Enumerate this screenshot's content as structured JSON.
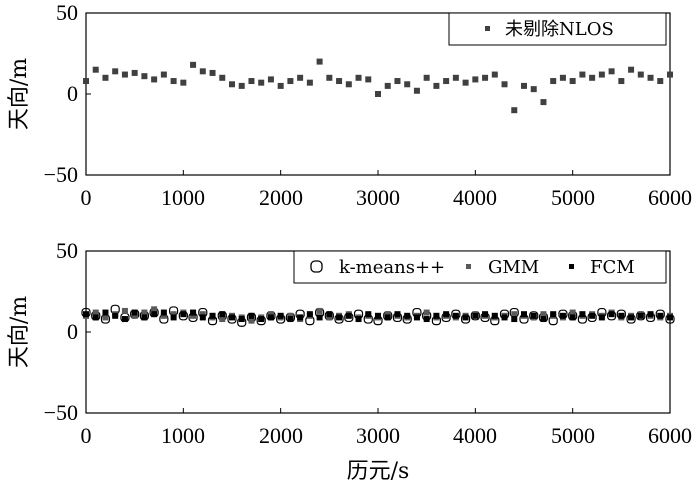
{
  "chart_data": [
    {
      "type": "scatter",
      "title": "",
      "ylabel": "天向/m",
      "xlabel": "",
      "xlim": [
        0,
        6000
      ],
      "ylim": [
        -50,
        50
      ],
      "xticks": [
        "0",
        "1000",
        "2000",
        "3000",
        "4000",
        "5000",
        "6000"
      ],
      "yticks": [
        "50",
        "0",
        "−50"
      ],
      "legend_position": "top-right",
      "series": [
        {
          "name": "未剔除NLOS",
          "color": "#404040",
          "marker": "square",
          "x": [
            0,
            100,
            200,
            300,
            400,
            500,
            600,
            700,
            800,
            900,
            1000,
            1100,
            1200,
            1300,
            1400,
            1500,
            1600,
            1700,
            1800,
            1900,
            2000,
            2100,
            2200,
            2300,
            2400,
            2500,
            2600,
            2700,
            2800,
            2900,
            3000,
            3100,
            3200,
            3300,
            3400,
            3500,
            3600,
            3700,
            3800,
            3900,
            4000,
            4100,
            4200,
            4300,
            4400,
            4500,
            4600,
            4700,
            4800,
            4900,
            5000,
            5100,
            5200,
            5300,
            5400,
            5500,
            5600,
            5700,
            5800,
            5900,
            6000
          ],
          "y": [
            8,
            15,
            10,
            14,
            12,
            13,
            11,
            9,
            12,
            8,
            7,
            18,
            14,
            13,
            10,
            6,
            5,
            8,
            7,
            9,
            5,
            8,
            10,
            7,
            20,
            10,
            8,
            6,
            10,
            9,
            0,
            5,
            8,
            6,
            2,
            10,
            5,
            8,
            10,
            7,
            9,
            10,
            12,
            6,
            -10,
            5,
            3,
            -5,
            8,
            10,
            8,
            12,
            10,
            12,
            14,
            8,
            15,
            12,
            10,
            8,
            12
          ]
        }
      ]
    },
    {
      "type": "scatter",
      "title": "",
      "ylabel": "天向/m",
      "xlabel": "历元/s",
      "xlim": [
        0,
        6000
      ],
      "ylim": [
        -50,
        50
      ],
      "xticks": [
        "0",
        "1000",
        "2000",
        "3000",
        "4000",
        "5000",
        "6000"
      ],
      "yticks": [
        "50",
        "0",
        "−50"
      ],
      "legend_position": "top-right",
      "series": [
        {
          "name": "k-means++",
          "color": "#000000",
          "marker": "open-circle",
          "x": [
            0,
            100,
            200,
            300,
            400,
            500,
            600,
            700,
            800,
            900,
            1000,
            1100,
            1200,
            1300,
            1400,
            1500,
            1600,
            1700,
            1800,
            1900,
            2000,
            2100,
            2200,
            2300,
            2400,
            2500,
            2600,
            2700,
            2800,
            2900,
            3000,
            3100,
            3200,
            3300,
            3400,
            3500,
            3600,
            3700,
            3800,
            3900,
            4000,
            4100,
            4200,
            4300,
            4400,
            4500,
            4600,
            4700,
            4800,
            4900,
            5000,
            5100,
            5200,
            5300,
            5400,
            5500,
            5600,
            5700,
            5800,
            5900,
            6000
          ],
          "y": [
            12,
            10,
            8,
            14,
            9,
            11,
            10,
            12,
            8,
            13,
            10,
            9,
            12,
            7,
            10,
            8,
            6,
            9,
            7,
            10,
            8,
            9,
            11,
            7,
            12,
            10,
            8,
            9,
            11,
            8,
            7,
            10,
            9,
            8,
            12,
            10,
            7,
            9,
            11,
            8,
            10,
            9,
            7,
            11,
            12,
            8,
            10,
            9,
            7,
            11,
            10,
            8,
            9,
            12,
            10,
            11,
            8,
            10,
            9,
            11,
            8
          ]
        },
        {
          "name": "GMM",
          "color": "#5a5a5a",
          "marker": "square",
          "x": [
            0,
            100,
            200,
            300,
            400,
            500,
            600,
            700,
            800,
            900,
            1000,
            1100,
            1200,
            1300,
            1400,
            1500,
            1600,
            1700,
            1800,
            1900,
            2000,
            2100,
            2200,
            2300,
            2400,
            2500,
            2600,
            2700,
            2800,
            2900,
            3000,
            3100,
            3200,
            3300,
            3400,
            3500,
            3600,
            3700,
            3800,
            3900,
            4000,
            4100,
            4200,
            4300,
            4400,
            4500,
            4600,
            4700,
            4800,
            4900,
            5000,
            5100,
            5200,
            5300,
            5400,
            5500,
            5600,
            5700,
            5800,
            5900,
            6000
          ],
          "y": [
            10,
            12,
            9,
            11,
            13,
            10,
            12,
            14,
            10,
            11,
            12,
            10,
            11,
            9,
            8,
            10,
            9,
            7,
            9,
            11,
            9,
            10,
            8,
            10,
            13,
            9,
            10,
            11,
            9,
            10,
            9,
            11,
            10,
            9,
            10,
            12,
            9,
            10,
            9,
            10,
            11,
            10,
            9,
            10,
            11,
            10,
            9,
            11,
            10,
            9,
            12,
            10,
            11,
            10,
            12,
            9,
            10,
            11,
            10,
            9,
            10
          ]
        },
        {
          "name": "FCM",
          "color": "#000000",
          "marker": "square",
          "x": [
            0,
            100,
            200,
            300,
            400,
            500,
            600,
            700,
            800,
            900,
            1000,
            1100,
            1200,
            1300,
            1400,
            1500,
            1600,
            1700,
            1800,
            1900,
            2000,
            2100,
            2200,
            2300,
            2400,
            2500,
            2600,
            2700,
            2800,
            2900,
            3000,
            3100,
            3200,
            3300,
            3400,
            3500,
            3600,
            3700,
            3800,
            3900,
            4000,
            4100,
            4200,
            4300,
            4400,
            4500,
            4600,
            4700,
            4800,
            4900,
            5000,
            5100,
            5200,
            5300,
            5400,
            5500,
            5600,
            5700,
            5800,
            5900,
            6000
          ],
          "y": [
            11,
            9,
            12,
            10,
            8,
            12,
            9,
            11,
            12,
            9,
            11,
            12,
            9,
            10,
            11,
            9,
            8,
            10,
            8,
            9,
            10,
            8,
            9,
            11,
            9,
            11,
            9,
            10,
            8,
            11,
            10,
            9,
            11,
            10,
            9,
            8,
            10,
            11,
            10,
            9,
            10,
            11,
            10,
            9,
            8,
            11,
            10,
            8,
            11,
            10,
            9,
            11,
            10,
            9,
            11,
            10,
            9,
            10,
            11,
            10,
            9
          ]
        }
      ]
    }
  ]
}
